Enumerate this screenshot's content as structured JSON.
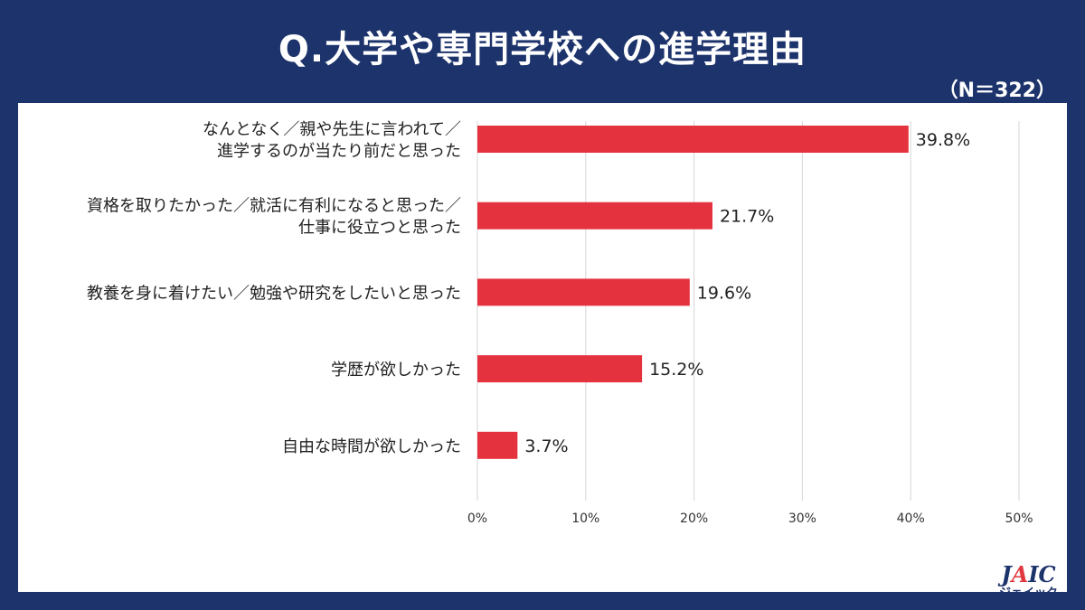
{
  "header": {
    "title": "Q.大学や専門学校への進学理由",
    "sample_size": "（N＝322）"
  },
  "logo": {
    "text_main_a": "J",
    "text_main_accent": "A",
    "text_main_b": "IC",
    "text_sub": "ジェイック"
  },
  "chart_data": {
    "type": "bar",
    "orientation": "horizontal",
    "categories": [
      "なんとなく／親や先生に言われて／\n進学するのが当たり前だと思った",
      "資格を取りたかった／就活に有利になると思った／\n仕事に役立つと思った",
      "教養を身に着けたい／勉強や研究をしたいと思った",
      "学歴が欲しかった",
      "自由な時間が欲しかった"
    ],
    "values": [
      39.8,
      21.7,
      19.6,
      15.2,
      3.7
    ],
    "value_labels": [
      "39.8%",
      "21.7%",
      "19.6%",
      "15.2%",
      "3.7%"
    ],
    "xlim": [
      0,
      50
    ],
    "xticks": [
      0,
      10,
      20,
      30,
      40,
      50
    ],
    "xtick_labels": [
      "0%",
      "10%",
      "20%",
      "30%",
      "40%",
      "50%"
    ],
    "grid": true,
    "bar_color": "#e5323f"
  },
  "colors": {
    "background": "#1d336b",
    "panel": "#ffffff",
    "bar": "#e5323f",
    "grid": "#d6d6d6"
  }
}
